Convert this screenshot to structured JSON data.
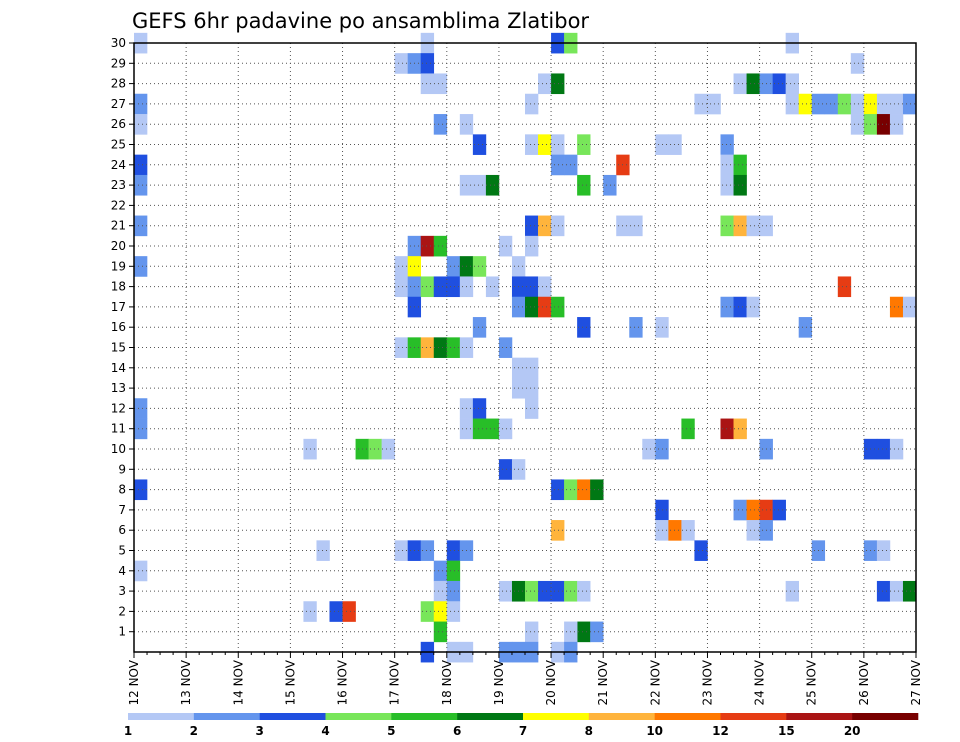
{
  "chart_data": {
    "type": "heatmap",
    "title": "GEFS 6hr padavine po ansamblima Zlatibor",
    "xlabel": "",
    "ylabel": "",
    "x_tick_labels": [
      "12 NOV",
      "13 NOV",
      "14 NOV",
      "15 NOV",
      "16 NOV",
      "17 NOV",
      "18 NOV",
      "19 NOV",
      "20 NOV",
      "21 NOV",
      "22 NOV",
      "23 NOV",
      "24 NOV",
      "25 NOV",
      "26 NOV",
      "27 NOV"
    ],
    "x_unit": "6-hour step (4 per day)",
    "x_range": [
      0,
      60
    ],
    "y_tick_labels": [
      "1",
      "2",
      "3",
      "4",
      "5",
      "6",
      "7",
      "8",
      "9",
      "10",
      "11",
      "12",
      "13",
      "14",
      "15",
      "16",
      "17",
      "18",
      "19",
      "20",
      "21",
      "22",
      "23",
      "24",
      "25",
      "26",
      "27",
      "28",
      "29",
      "30"
    ],
    "y_range": [
      0,
      30
    ],
    "grid": true,
    "legend": {
      "placement": "bottom",
      "labels": [
        "1",
        "2",
        "3",
        "4",
        "5",
        "6",
        "7",
        "8",
        "10",
        "12",
        "15",
        "20"
      ],
      "colors": [
        "#b4c8f5",
        "#6495ed",
        "#1f4fe0",
        "#78e65a",
        "#28be28",
        "#007814",
        "#ffff00",
        "#ffb43c",
        "#ff7800",
        "#e63c14",
        "#aa1414",
        "#780000"
      ]
    },
    "cells": [
      {
        "m": 30,
        "t": 1,
        "c": 1
      },
      {
        "m": 30,
        "t": 23,
        "c": 1
      },
      {
        "m": 30,
        "t": 33,
        "c": 3
      },
      {
        "m": 30,
        "t": 34,
        "c": 4
      },
      {
        "m": 30,
        "t": 51,
        "c": 1
      },
      {
        "m": 29,
        "t": 21,
        "c": 1
      },
      {
        "m": 29,
        "t": 22,
        "c": 2
      },
      {
        "m": 29,
        "t": 23,
        "c": 3
      },
      {
        "m": 29,
        "t": 56,
        "c": 1
      },
      {
        "m": 28,
        "t": 23,
        "c": 1
      },
      {
        "m": 28,
        "t": 24,
        "c": 1
      },
      {
        "m": 28,
        "t": 32,
        "c": 1
      },
      {
        "m": 28,
        "t": 33,
        "c": 6
      },
      {
        "m": 28,
        "t": 47,
        "c": 1
      },
      {
        "m": 28,
        "t": 48,
        "c": 6
      },
      {
        "m": 28,
        "t": 49,
        "c": 2
      },
      {
        "m": 28,
        "t": 50,
        "c": 3
      },
      {
        "m": 28,
        "t": 51,
        "c": 1
      },
      {
        "m": 27,
        "t": 1,
        "c": 2
      },
      {
        "m": 27,
        "t": 31,
        "c": 1
      },
      {
        "m": 27,
        "t": 44,
        "c": 1
      },
      {
        "m": 27,
        "t": 45,
        "c": 1
      },
      {
        "m": 27,
        "t": 51,
        "c": 1
      },
      {
        "m": 27,
        "t": 52,
        "c": 7
      },
      {
        "m": 27,
        "t": 53,
        "c": 2
      },
      {
        "m": 27,
        "t": 54,
        "c": 2
      },
      {
        "m": 27,
        "t": 55,
        "c": 4
      },
      {
        "m": 27,
        "t": 56,
        "c": 1
      },
      {
        "m": 27,
        "t": 57,
        "c": 7
      },
      {
        "m": 27,
        "t": 58,
        "c": 1
      },
      {
        "m": 27,
        "t": 59,
        "c": 1
      },
      {
        "m": 27,
        "t": 60,
        "c": 2
      },
      {
        "m": 26,
        "t": 1,
        "c": 1
      },
      {
        "m": 26,
        "t": 24,
        "c": 2
      },
      {
        "m": 26,
        "t": 26,
        "c": 1
      },
      {
        "m": 26,
        "t": 56,
        "c": 1
      },
      {
        "m": 26,
        "t": 57,
        "c": 4
      },
      {
        "m": 26,
        "t": 58,
        "c": 12
      },
      {
        "m": 26,
        "t": 59,
        "c": 1
      },
      {
        "m": 25,
        "t": 27,
        "c": 3
      },
      {
        "m": 25,
        "t": 31,
        "c": 1
      },
      {
        "m": 25,
        "t": 32,
        "c": 7
      },
      {
        "m": 25,
        "t": 33,
        "c": 1
      },
      {
        "m": 25,
        "t": 35,
        "c": 4
      },
      {
        "m": 25,
        "t": 41,
        "c": 1
      },
      {
        "m": 25,
        "t": 42,
        "c": 1
      },
      {
        "m": 25,
        "t": 46,
        "c": 2
      },
      {
        "m": 24,
        "t": 1,
        "c": 3
      },
      {
        "m": 24,
        "t": 33,
        "c": 2
      },
      {
        "m": 24,
        "t": 34,
        "c": 2
      },
      {
        "m": 24,
        "t": 38,
        "c": 10
      },
      {
        "m": 24,
        "t": 46,
        "c": 1
      },
      {
        "m": 24,
        "t": 47,
        "c": 5
      },
      {
        "m": 23,
        "t": 1,
        "c": 2
      },
      {
        "m": 23,
        "t": 26,
        "c": 1
      },
      {
        "m": 23,
        "t": 27,
        "c": 1
      },
      {
        "m": 23,
        "t": 28,
        "c": 6
      },
      {
        "m": 23,
        "t": 35,
        "c": 5
      },
      {
        "m": 23,
        "t": 37,
        "c": 2
      },
      {
        "m": 23,
        "t": 46,
        "c": 1
      },
      {
        "m": 23,
        "t": 47,
        "c": 6
      },
      {
        "m": 21,
        "t": 1,
        "c": 2
      },
      {
        "m": 21,
        "t": 31,
        "c": 3
      },
      {
        "m": 21,
        "t": 32,
        "c": 8
      },
      {
        "m": 21,
        "t": 33,
        "c": 1
      },
      {
        "m": 21,
        "t": 38,
        "c": 1
      },
      {
        "m": 21,
        "t": 39,
        "c": 1
      },
      {
        "m": 21,
        "t": 46,
        "c": 4
      },
      {
        "m": 21,
        "t": 47,
        "c": 8
      },
      {
        "m": 21,
        "t": 48,
        "c": 1
      },
      {
        "m": 21,
        "t": 49,
        "c": 1
      },
      {
        "m": 20,
        "t": 22,
        "c": 2
      },
      {
        "m": 20,
        "t": 23,
        "c": 11
      },
      {
        "m": 20,
        "t": 24,
        "c": 5
      },
      {
        "m": 20,
        "t": 29,
        "c": 1
      },
      {
        "m": 20,
        "t": 31,
        "c": 1
      },
      {
        "m": 19,
        "t": 1,
        "c": 2
      },
      {
        "m": 19,
        "t": 21,
        "c": 1
      },
      {
        "m": 19,
        "t": 22,
        "c": 7
      },
      {
        "m": 19,
        "t": 25,
        "c": 2
      },
      {
        "m": 19,
        "t": 26,
        "c": 6
      },
      {
        "m": 19,
        "t": 27,
        "c": 4
      },
      {
        "m": 19,
        "t": 30,
        "c": 1
      },
      {
        "m": 18,
        "t": 21,
        "c": 1
      },
      {
        "m": 18,
        "t": 22,
        "c": 2
      },
      {
        "m": 18,
        "t": 23,
        "c": 4
      },
      {
        "m": 18,
        "t": 24,
        "c": 3
      },
      {
        "m": 18,
        "t": 25,
        "c": 3
      },
      {
        "m": 18,
        "t": 26,
        "c": 1
      },
      {
        "m": 18,
        "t": 28,
        "c": 1
      },
      {
        "m": 18,
        "t": 30,
        "c": 3
      },
      {
        "m": 18,
        "t": 31,
        "c": 3
      },
      {
        "m": 18,
        "t": 32,
        "c": 1
      },
      {
        "m": 18,
        "t": 55,
        "c": 10
      },
      {
        "m": 17,
        "t": 22,
        "c": 3
      },
      {
        "m": 17,
        "t": 30,
        "c": 2
      },
      {
        "m": 17,
        "t": 31,
        "c": 6
      },
      {
        "m": 17,
        "t": 32,
        "c": 10
      },
      {
        "m": 17,
        "t": 33,
        "c": 5
      },
      {
        "m": 17,
        "t": 46,
        "c": 2
      },
      {
        "m": 17,
        "t": 47,
        "c": 3
      },
      {
        "m": 17,
        "t": 48,
        "c": 1
      },
      {
        "m": 17,
        "t": 59,
        "c": 9
      },
      {
        "m": 17,
        "t": 60,
        "c": 1
      },
      {
        "m": 16,
        "t": 27,
        "c": 2
      },
      {
        "m": 16,
        "t": 35,
        "c": 3
      },
      {
        "m": 16,
        "t": 39,
        "c": 2
      },
      {
        "m": 16,
        "t": 41,
        "c": 1
      },
      {
        "m": 16,
        "t": 52,
        "c": 2
      },
      {
        "m": 15,
        "t": 21,
        "c": 1
      },
      {
        "m": 15,
        "t": 22,
        "c": 5
      },
      {
        "m": 15,
        "t": 23,
        "c": 8
      },
      {
        "m": 15,
        "t": 24,
        "c": 6
      },
      {
        "m": 15,
        "t": 25,
        "c": 5
      },
      {
        "m": 15,
        "t": 26,
        "c": 1
      },
      {
        "m": 15,
        "t": 29,
        "c": 2
      },
      {
        "m": 14,
        "t": 30,
        "c": 1
      },
      {
        "m": 14,
        "t": 31,
        "c": 1
      },
      {
        "m": 13,
        "t": 30,
        "c": 1
      },
      {
        "m": 13,
        "t": 31,
        "c": 1
      },
      {
        "m": 12,
        "t": 1,
        "c": 2
      },
      {
        "m": 12,
        "t": 26,
        "c": 1
      },
      {
        "m": 12,
        "t": 27,
        "c": 3
      },
      {
        "m": 12,
        "t": 31,
        "c": 1
      },
      {
        "m": 11,
        "t": 1,
        "c": 2
      },
      {
        "m": 11,
        "t": 26,
        "c": 1
      },
      {
        "m": 11,
        "t": 27,
        "c": 5
      },
      {
        "m": 11,
        "t": 28,
        "c": 5
      },
      {
        "m": 11,
        "t": 29,
        "c": 1
      },
      {
        "m": 11,
        "t": 43,
        "c": 5
      },
      {
        "m": 11,
        "t": 46,
        "c": 11
      },
      {
        "m": 11,
        "t": 47,
        "c": 8
      },
      {
        "m": 10,
        "t": 14,
        "c": 1
      },
      {
        "m": 10,
        "t": 18,
        "c": 5
      },
      {
        "m": 10,
        "t": 19,
        "c": 4
      },
      {
        "m": 10,
        "t": 20,
        "c": 1
      },
      {
        "m": 10,
        "t": 40,
        "c": 1
      },
      {
        "m": 10,
        "t": 41,
        "c": 2
      },
      {
        "m": 10,
        "t": 49,
        "c": 2
      },
      {
        "m": 10,
        "t": 57,
        "c": 3
      },
      {
        "m": 10,
        "t": 58,
        "c": 3
      },
      {
        "m": 10,
        "t": 59,
        "c": 1
      },
      {
        "m": 9,
        "t": 29,
        "c": 3
      },
      {
        "m": 9,
        "t": 30,
        "c": 1
      },
      {
        "m": 8,
        "t": 1,
        "c": 3
      },
      {
        "m": 8,
        "t": 33,
        "c": 3
      },
      {
        "m": 8,
        "t": 34,
        "c": 4
      },
      {
        "m": 8,
        "t": 35,
        "c": 9
      },
      {
        "m": 8,
        "t": 36,
        "c": 6
      },
      {
        "m": 7,
        "t": 41,
        "c": 3
      },
      {
        "m": 7,
        "t": 47,
        "c": 2
      },
      {
        "m": 7,
        "t": 48,
        "c": 9
      },
      {
        "m": 7,
        "t": 49,
        "c": 10
      },
      {
        "m": 7,
        "t": 50,
        "c": 3
      },
      {
        "m": 6,
        "t": 33,
        "c": 8
      },
      {
        "m": 6,
        "t": 41,
        "c": 1
      },
      {
        "m": 6,
        "t": 42,
        "c": 9
      },
      {
        "m": 6,
        "t": 43,
        "c": 1
      },
      {
        "m": 6,
        "t": 48,
        "c": 1
      },
      {
        "m": 6,
        "t": 49,
        "c": 2
      },
      {
        "m": 5,
        "t": 15,
        "c": 1
      },
      {
        "m": 5,
        "t": 21,
        "c": 1
      },
      {
        "m": 5,
        "t": 22,
        "c": 3
      },
      {
        "m": 5,
        "t": 23,
        "c": 2
      },
      {
        "m": 5,
        "t": 25,
        "c": 3
      },
      {
        "m": 5,
        "t": 26,
        "c": 2
      },
      {
        "m": 5,
        "t": 44,
        "c": 3
      },
      {
        "m": 5,
        "t": 53,
        "c": 2
      },
      {
        "m": 5,
        "t": 57,
        "c": 2
      },
      {
        "m": 5,
        "t": 58,
        "c": 1
      },
      {
        "m": 4,
        "t": 1,
        "c": 1
      },
      {
        "m": 4,
        "t": 24,
        "c": 2
      },
      {
        "m": 4,
        "t": 25,
        "c": 5
      },
      {
        "m": 3,
        "t": 24,
        "c": 1
      },
      {
        "m": 3,
        "t": 25,
        "c": 2
      },
      {
        "m": 3,
        "t": 29,
        "c": 1
      },
      {
        "m": 3,
        "t": 30,
        "c": 6
      },
      {
        "m": 3,
        "t": 31,
        "c": 4
      },
      {
        "m": 3,
        "t": 32,
        "c": 3
      },
      {
        "m": 3,
        "t": 33,
        "c": 3
      },
      {
        "m": 3,
        "t": 34,
        "c": 4
      },
      {
        "m": 3,
        "t": 35,
        "c": 1
      },
      {
        "m": 3,
        "t": 51,
        "c": 1
      },
      {
        "m": 3,
        "t": 58,
        "c": 3
      },
      {
        "m": 3,
        "t": 59,
        "c": 1
      },
      {
        "m": 3,
        "t": 60,
        "c": 6
      },
      {
        "m": 2,
        "t": 14,
        "c": 1
      },
      {
        "m": 2,
        "t": 16,
        "c": 3
      },
      {
        "m": 2,
        "t": 17,
        "c": 10
      },
      {
        "m": 2,
        "t": 23,
        "c": 4
      },
      {
        "m": 2,
        "t": 24,
        "c": 7
      },
      {
        "m": 2,
        "t": 25,
        "c": 1
      },
      {
        "m": 1,
        "t": 24,
        "c": 5
      },
      {
        "m": 1,
        "t": 31,
        "c": 1
      },
      {
        "m": 1,
        "t": 35,
        "c": 6
      },
      {
        "m": 1,
        "t": 36,
        "c": 2
      },
      {
        "m": 1,
        "t": 34,
        "c": 1
      },
      {
        "m": 0,
        "t": 23,
        "c": 3
      },
      {
        "m": 0,
        "t": 25,
        "c": 1
      },
      {
        "m": 0,
        "t": 26,
        "c": 1
      },
      {
        "m": 0,
        "t": 29,
        "c": 2
      },
      {
        "m": 0,
        "t": 30,
        "c": 2
      },
      {
        "m": 0,
        "t": 31,
        "c": 2
      },
      {
        "m": 0,
        "t": 33,
        "c": 1
      },
      {
        "m": 0,
        "t": 34,
        "c": 2
      }
    ]
  }
}
